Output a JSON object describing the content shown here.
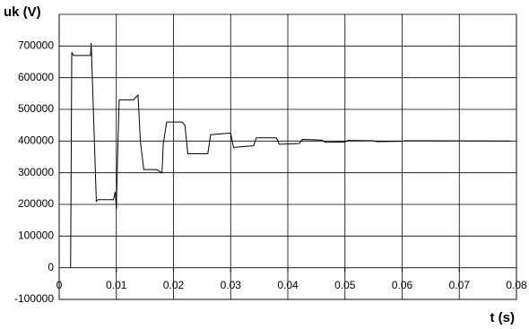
{
  "chart_data": {
    "type": "line",
    "y_label": "uk (V)",
    "x_label": "t (s)",
    "grid": true,
    "xlim": [
      0,
      0.08
    ],
    "xticks": [
      0,
      0.01,
      0.02,
      0.03,
      0.04,
      0.05,
      0.06,
      0.07,
      0.08
    ],
    "ylim": [
      -100000,
      800000
    ],
    "yticks": [
      -100000,
      0,
      100000,
      200000,
      300000,
      400000,
      500000,
      600000,
      700000
    ],
    "x": [
      0.002,
      0.0022,
      0.0025,
      0.0055,
      0.0056,
      0.0058,
      0.0065,
      0.0068,
      0.0095,
      0.0098,
      0.01,
      0.0102,
      0.0105,
      0.013,
      0.0138,
      0.0142,
      0.0148,
      0.017,
      0.018,
      0.0182,
      0.0188,
      0.0215,
      0.022,
      0.0225,
      0.026,
      0.0265,
      0.03,
      0.0305,
      0.034,
      0.0345,
      0.038,
      0.0385,
      0.042,
      0.0425,
      0.046,
      0.0465,
      0.05,
      0.0505,
      0.055,
      0.0555,
      0.06,
      0.0605,
      0.079
    ],
    "series": [
      {
        "color": "#000000",
        "values": [
          0,
          680000,
          670000,
          670000,
          710000,
          600000,
          210000,
          215000,
          215000,
          240000,
          185000,
          340000,
          530000,
          530000,
          545000,
          400000,
          310000,
          310000,
          300000,
          390000,
          460000,
          460000,
          450000,
          360000,
          360000,
          420000,
          425000,
          380000,
          385000,
          410000,
          410000,
          390000,
          392000,
          405000,
          403000,
          396000,
          397000,
          402000,
          401000,
          398000,
          399000,
          401000,
          400000
        ]
      }
    ]
  }
}
